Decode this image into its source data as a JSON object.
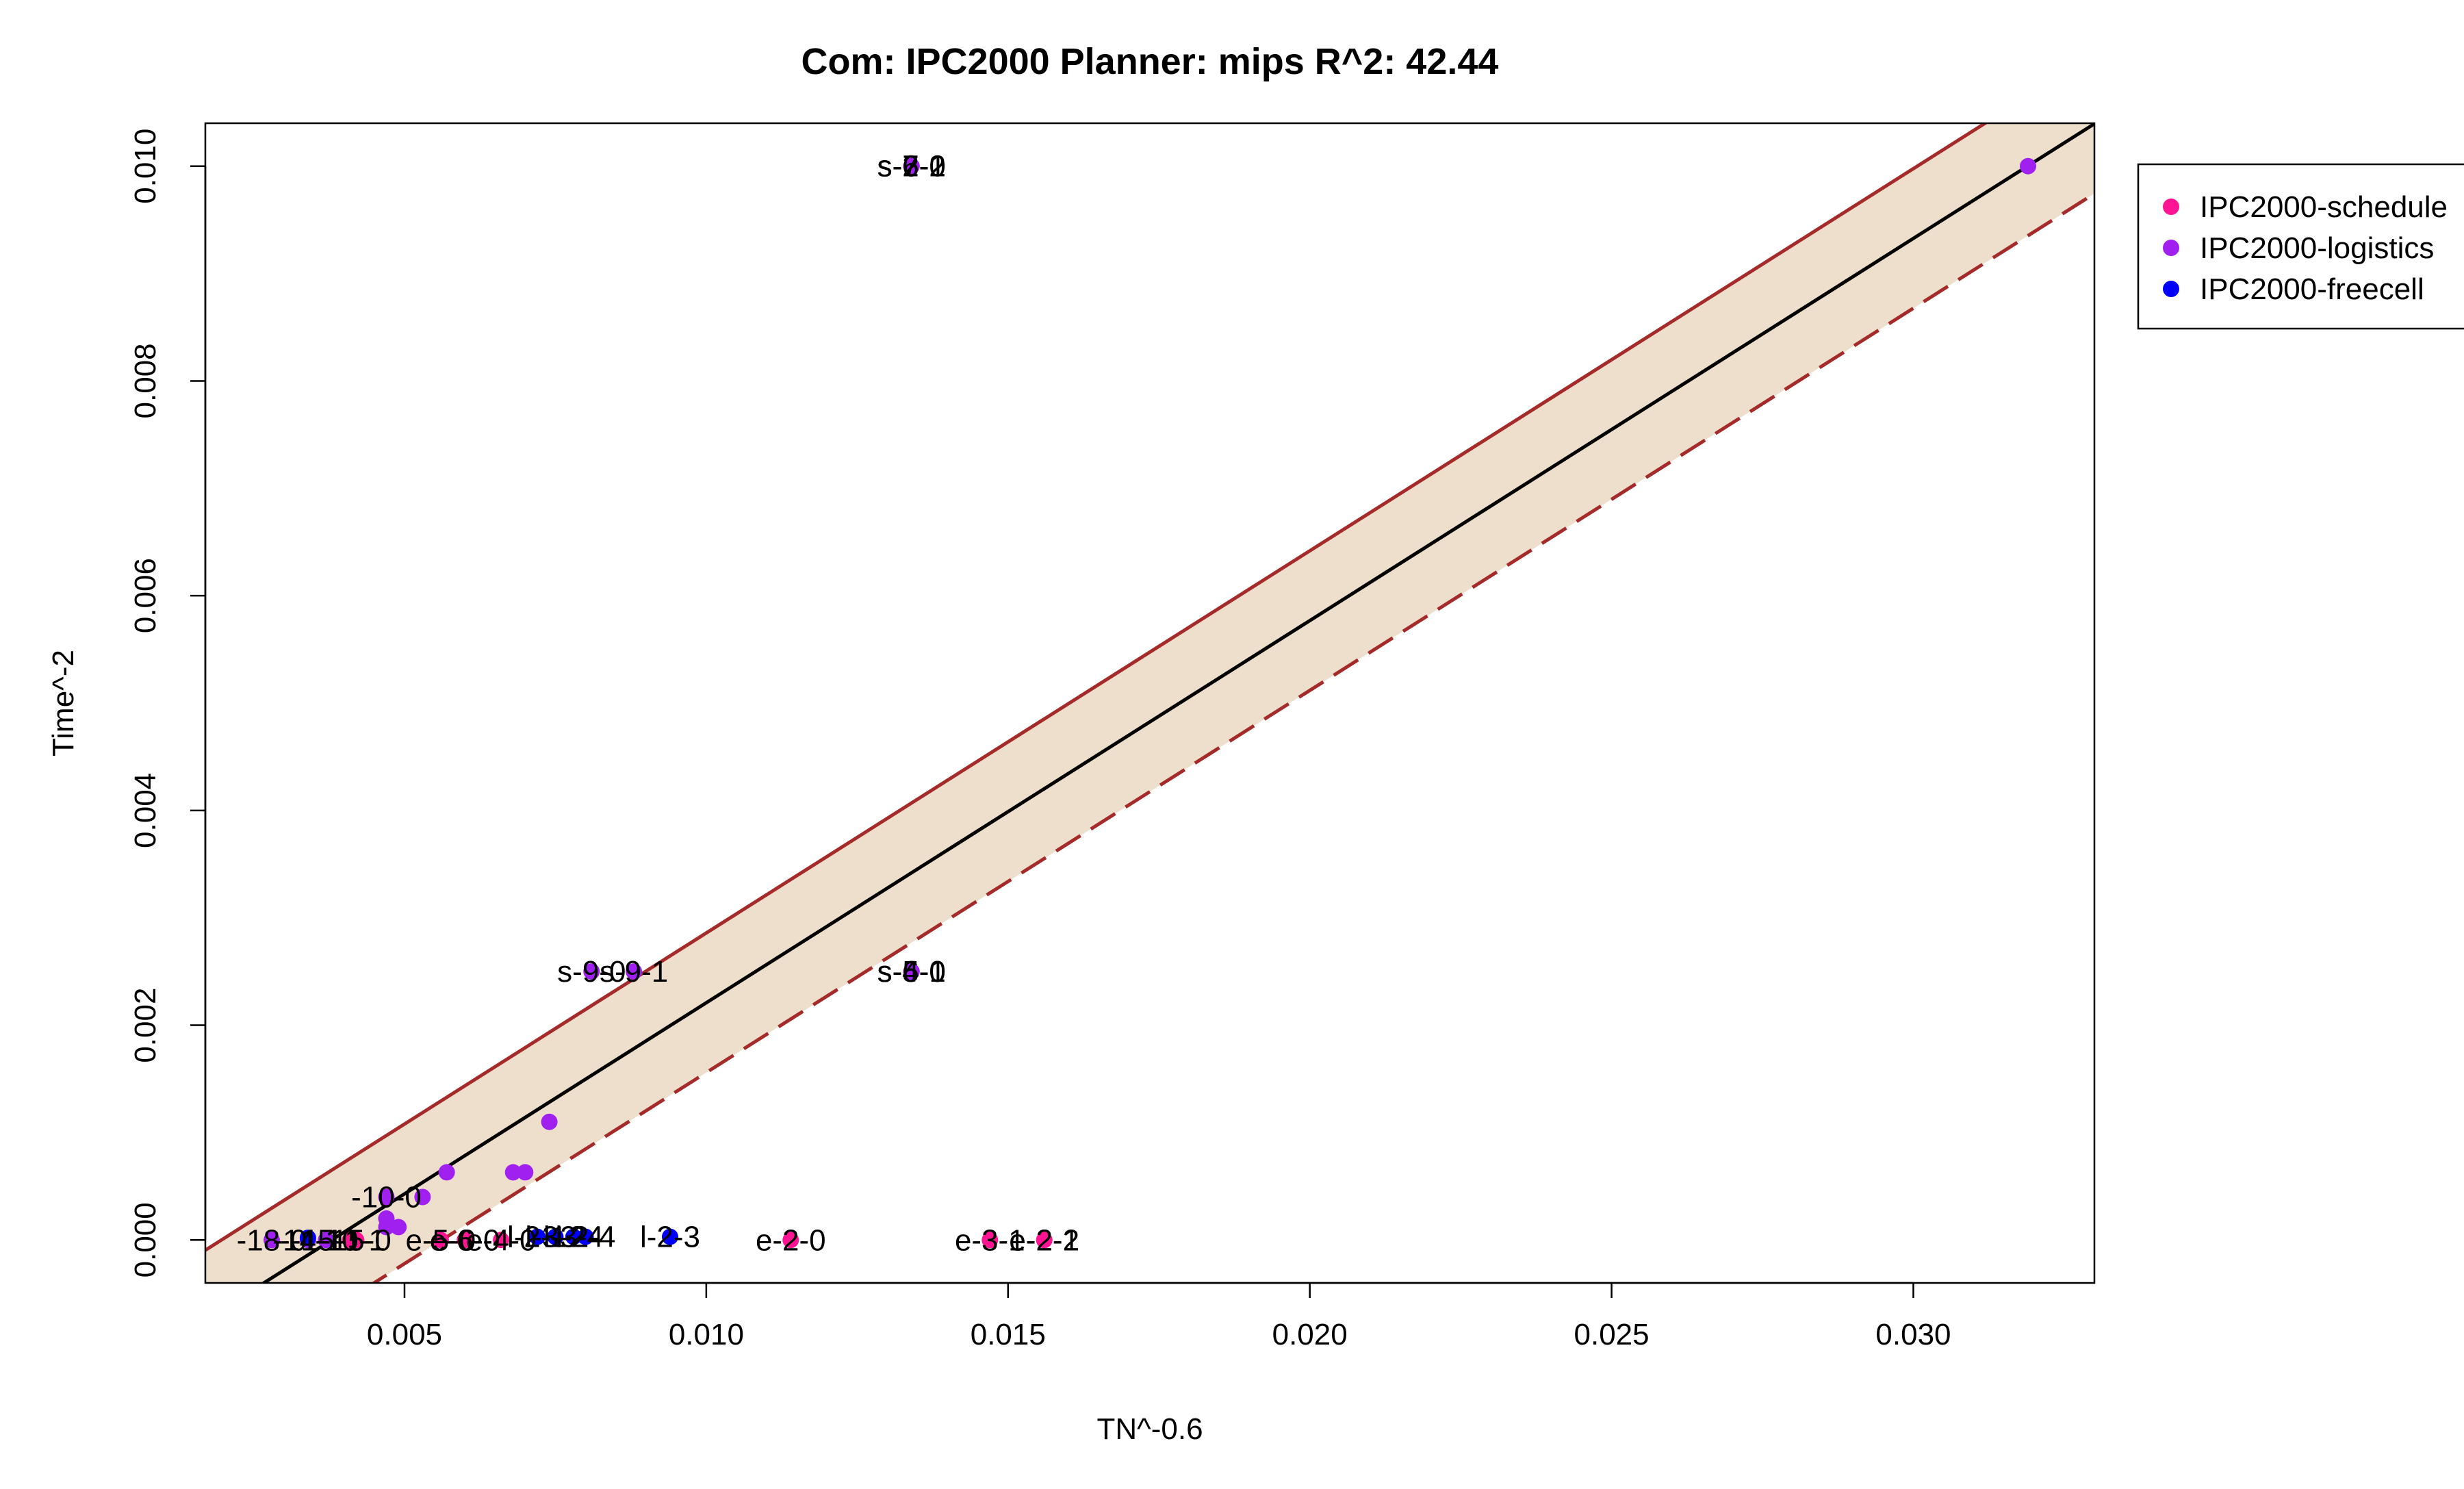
{
  "chart_data": {
    "type": "scatter",
    "title": "Com: IPC2000 Planner: mips R^2: 42.44",
    "xlabel": "TN^-0.6",
    "ylabel": "Time^-2",
    "xlim": [
      0.0017,
      0.033
    ],
    "ylim": [
      -0.0004,
      0.0104
    ],
    "xticks": [
      {
        "value": 0.005,
        "label": "0.005"
      },
      {
        "value": 0.01,
        "label": "0.010"
      },
      {
        "value": 0.015,
        "label": "0.015"
      },
      {
        "value": 0.02,
        "label": "0.020"
      },
      {
        "value": 0.025,
        "label": "0.025"
      },
      {
        "value": 0.03,
        "label": "0.030"
      }
    ],
    "yticks": [
      {
        "value": 0.0,
        "label": "0.000"
      },
      {
        "value": 0.002,
        "label": "0.002"
      },
      {
        "value": 0.004,
        "label": "0.004"
      },
      {
        "value": 0.006,
        "label": "0.006"
      },
      {
        "value": 0.008,
        "label": "0.008"
      },
      {
        "value": 0.01,
        "label": "0.010"
      }
    ],
    "fit": {
      "slope": 0.3559,
      "intercept": -0.00135,
      "band": 0.00065,
      "colors": {
        "line": "#000000",
        "band_fill": "#EEDFCC",
        "band_edge": "#A52A2A"
      }
    },
    "legend": {
      "position": "right-outside",
      "entries": [
        {
          "label": "IPC2000-schedule",
          "color": "#FF1493"
        },
        {
          "label": "IPC2000-logistics",
          "color": "#A020F0"
        },
        {
          "label": "IPC2000-freecell",
          "color": "#0000FF"
        }
      ]
    },
    "series": [
      {
        "name": "IPC2000-schedule",
        "color": "#FF1493",
        "points": [
          {
            "x": 0.0134,
            "y": 0.01,
            "label": "s-2-2"
          },
          {
            "x": 0.0134,
            "y": 0.01,
            "label": "s-6-1"
          },
          {
            "x": 0.0134,
            "y": 0.0025,
            "label": "s-6-0"
          },
          {
            "x": 0.0147,
            "y": 0.0,
            "label": "e-3-1"
          },
          {
            "x": 0.0156,
            "y": 0.0,
            "label": "e-2-2"
          },
          {
            "x": 0.0156,
            "y": 0.0,
            "label": "e-2-1"
          },
          {
            "x": 0.0114,
            "y": 0.0,
            "label": "e-2-0"
          },
          {
            "x": 0.0056,
            "y": 0.0,
            "label": "e-5-0"
          },
          {
            "x": 0.006,
            "y": 0.0,
            "label": "e-6-0"
          },
          {
            "x": 0.0066,
            "y": 0.0,
            "label": "e-4-0"
          },
          {
            "x": 0.0041,
            "y": 0.0,
            "label": "-10-1"
          },
          {
            "x": 0.0042,
            "y": 0.0,
            "label": "-15-0"
          }
        ]
      },
      {
        "name": "IPC2000-logistics",
        "color": "#A020F0",
        "points": [
          {
            "x": 0.0319,
            "y": 0.01,
            "label": ""
          },
          {
            "x": 0.0134,
            "y": 0.01,
            "label": "s-7-0"
          },
          {
            "x": 0.0134,
            "y": 0.01,
            "label": "s-6-2"
          },
          {
            "x": 0.0134,
            "y": 0.0025,
            "label": "s-5-0"
          },
          {
            "x": 0.0134,
            "y": 0.0025,
            "label": "s-4-1"
          },
          {
            "x": 0.0081,
            "y": 0.0025,
            "label": "s-9-0"
          },
          {
            "x": 0.0088,
            "y": 0.0025,
            "label": "s-9-1"
          },
          {
            "x": 0.0074,
            "y": 0.0011,
            "label": ""
          },
          {
            "x": 0.0057,
            "y": 0.00063,
            "label": ""
          },
          {
            "x": 0.0068,
            "y": 0.00063,
            "label": ""
          },
          {
            "x": 0.007,
            "y": 0.00063,
            "label": ""
          },
          {
            "x": 0.0047,
            "y": 0.0004,
            "label": "-10-0"
          },
          {
            "x": 0.0053,
            "y": 0.0004,
            "label": ""
          },
          {
            "x": 0.0047,
            "y": 0.0002,
            "label": ""
          },
          {
            "x": 0.0047,
            "y": 0.00012,
            "label": ""
          },
          {
            "x": 0.0049,
            "y": 0.00012,
            "label": ""
          },
          {
            "x": 0.0028,
            "y": 0.0,
            "label": "-18-0"
          },
          {
            "x": 0.0034,
            "y": 0.0,
            "label": "-14-1"
          },
          {
            "x": 0.0037,
            "y": 0.0,
            "label": "-15-1"
          }
        ]
      },
      {
        "name": "IPC2000-freecell",
        "color": "#0000FF",
        "points": [
          {
            "x": 0.0094,
            "y": 3e-05,
            "label": "l-2-3"
          },
          {
            "x": 0.0075,
            "y": 3e-05,
            "label": "l-3-2"
          },
          {
            "x": 0.0078,
            "y": 3e-05,
            "label": "l-3-4"
          },
          {
            "x": 0.008,
            "y": 3e-05,
            "label": "l-2-4"
          },
          {
            "x": 0.0072,
            "y": 3e-05,
            "label": "l-2-1"
          },
          {
            "x": 0.0034,
            "y": 2e-05,
            "label": ""
          }
        ]
      }
    ]
  }
}
